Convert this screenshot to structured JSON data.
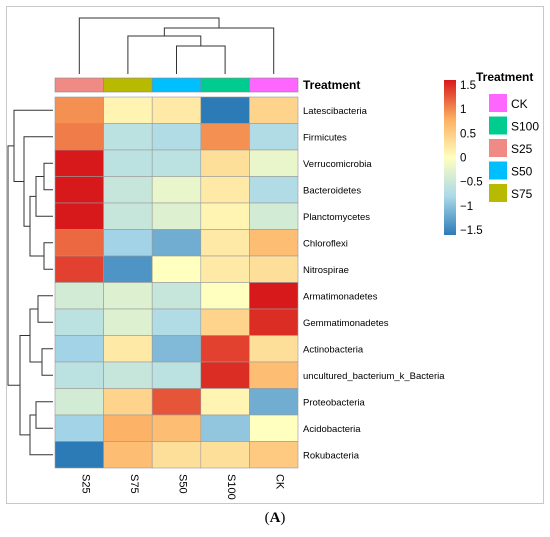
{
  "caption": {
    "prefix": "(",
    "letter": "A",
    "suffix": ")"
  },
  "chart_data": {
    "type": "heatmap",
    "title": "",
    "annotation_header": "Treatment",
    "columns": [
      "S25",
      "S75",
      "S50",
      "S100",
      "CK"
    ],
    "column_treatment": [
      "S25",
      "S75",
      "S50",
      "S100",
      "CK"
    ],
    "rows": [
      "Latescibacteria",
      "Firmicutes",
      "Verrucomicrobia",
      "Bacteroidetes",
      "Planctomycetes",
      "Chloroflexi",
      "Nitrospirae",
      "Armatimonadetes",
      "Gemmatimonadetes",
      "Actinobacteria",
      "uncultured_bacterium_k_Bacteria",
      "Proteobacteria",
      "Acidobacteria",
      "Rokubacteria"
    ],
    "values": [
      [
        0.9,
        0.1,
        0.2,
        -1.6,
        0.4
      ],
      [
        1.0,
        -0.6,
        -0.7,
        0.9,
        -0.7
      ],
      [
        1.6,
        -0.6,
        -0.6,
        0.3,
        -0.2
      ],
      [
        1.6,
        -0.5,
        -0.2,
        0.2,
        -0.7
      ],
      [
        1.6,
        -0.5,
        -0.3,
        0.1,
        -0.4
      ],
      [
        1.1,
        -0.8,
        -1.1,
        0.2,
        0.6
      ],
      [
        1.3,
        -1.3,
        0.0,
        0.2,
        0.3
      ],
      [
        -0.4,
        -0.3,
        -0.5,
        0.0,
        1.6
      ],
      [
        -0.6,
        -0.3,
        -0.7,
        0.4,
        1.4
      ],
      [
        -0.8,
        0.2,
        -1.0,
        1.3,
        0.3
      ],
      [
        -0.6,
        -0.5,
        -0.6,
        1.4,
        0.6
      ],
      [
        -0.4,
        0.4,
        1.2,
        0.1,
        -1.1
      ],
      [
        -0.8,
        0.7,
        0.6,
        -0.9,
        0.0
      ],
      [
        -1.7,
        0.6,
        0.3,
        0.3,
        0.5
      ]
    ],
    "colorbar": {
      "range": [
        -1.5,
        1.5
      ],
      "ticks": [
        1.5,
        1,
        0.5,
        0,
        -0.5,
        -1,
        -1.5
      ],
      "tick_labels": [
        "1.5",
        "1",
        "0.5",
        "0",
        "−0.5",
        "−1",
        "−1.5"
      ],
      "colors": [
        "#2c7bb6",
        "#abd9e9",
        "#ffffbf",
        "#fdae61",
        "#d7191c"
      ]
    },
    "legend": {
      "title": "Treatment",
      "placement": "right",
      "items": [
        {
          "label": "CK",
          "color": "#ff66ff"
        },
        {
          "label": "S100",
          "color": "#00cc8f"
        },
        {
          "label": "S25",
          "color": "#f08a84"
        },
        {
          "label": "S50",
          "color": "#00bfff"
        },
        {
          "label": "S75",
          "color": "#b8ba00"
        }
      ]
    },
    "column_dendrogram": true,
    "row_dendrogram": true
  }
}
